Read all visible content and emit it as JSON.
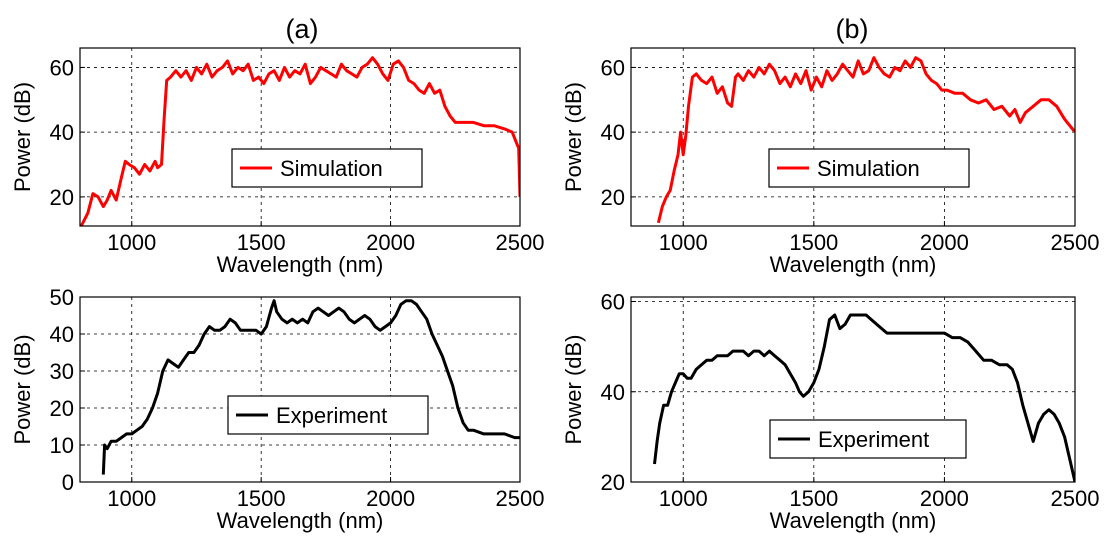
{
  "chart_data": [
    {
      "type": "line",
      "panel_title": "(a)",
      "xlabel": "Wavelength (nm)",
      "ylabel": "Power (dB)",
      "xlim": [
        800,
        2500
      ],
      "ylim": [
        11,
        66
      ],
      "xticks": [
        1000,
        1500,
        2000,
        2500
      ],
      "yticks": [
        20,
        40,
        60
      ],
      "grid": true,
      "legend": "center",
      "series": [
        {
          "name": "Simulation",
          "color": "#ff0000",
          "x": [
            805,
            830,
            850,
            870,
            890,
            905,
            920,
            940,
            960,
            975,
            990,
            1010,
            1030,
            1050,
            1070,
            1090,
            1100,
            1115,
            1125,
            1135,
            1150,
            1170,
            1190,
            1210,
            1230,
            1250,
            1270,
            1290,
            1310,
            1330,
            1350,
            1370,
            1390,
            1410,
            1430,
            1450,
            1470,
            1490,
            1510,
            1530,
            1550,
            1570,
            1590,
            1610,
            1630,
            1650,
            1670,
            1690,
            1710,
            1730,
            1750,
            1770,
            1790,
            1810,
            1830,
            1850,
            1870,
            1890,
            1910,
            1930,
            1950,
            1970,
            1990,
            2010,
            2030,
            2050,
            2070,
            2090,
            2110,
            2130,
            2150,
            2170,
            2190,
            2210,
            2230,
            2250,
            2280,
            2320,
            2360,
            2400,
            2440,
            2470,
            2485,
            2495,
            2500
          ],
          "y": [
            11,
            15,
            21,
            20,
            17,
            19,
            22,
            19,
            26,
            31,
            30,
            29,
            27,
            30,
            28,
            31,
            29,
            30,
            44,
            56,
            57,
            59,
            57,
            59,
            56,
            60,
            58,
            61,
            57,
            59,
            60,
            62,
            58,
            60,
            59,
            61,
            56,
            57,
            55,
            58,
            59,
            56,
            60,
            57,
            59,
            58,
            61,
            55,
            57,
            60,
            59,
            58,
            57,
            61,
            59,
            58,
            57,
            60,
            61,
            63,
            61,
            58,
            56,
            61,
            62,
            60,
            56,
            55,
            53,
            52,
            55,
            52,
            53,
            48,
            45,
            43,
            43,
            43,
            42,
            42,
            41,
            40,
            37,
            35,
            20
          ]
        }
      ]
    },
    {
      "type": "line",
      "panel_title": "(b)",
      "xlabel": "Wavelength (nm)",
      "ylabel": "Power (dB)",
      "xlim": [
        800,
        2500
      ],
      "ylim": [
        11,
        66
      ],
      "xticks": [
        1000,
        1500,
        2000,
        2500
      ],
      "yticks": [
        20,
        40,
        60
      ],
      "grid": true,
      "legend": "center",
      "series": [
        {
          "name": "Simulation",
          "color": "#ff0000",
          "x": [
            905,
            920,
            935,
            950,
            965,
            980,
            990,
            1000,
            1010,
            1020,
            1035,
            1050,
            1070,
            1090,
            1110,
            1130,
            1150,
            1170,
            1185,
            1200,
            1210,
            1230,
            1250,
            1270,
            1290,
            1310,
            1330,
            1350,
            1370,
            1390,
            1410,
            1430,
            1450,
            1470,
            1490,
            1510,
            1530,
            1550,
            1570,
            1590,
            1610,
            1630,
            1650,
            1670,
            1690,
            1710,
            1730,
            1750,
            1770,
            1790,
            1810,
            1830,
            1850,
            1870,
            1890,
            1910,
            1930,
            1950,
            1970,
            1990,
            2010,
            2040,
            2070,
            2100,
            2130,
            2160,
            2190,
            2220,
            2250,
            2270,
            2290,
            2310,
            2340,
            2370,
            2400,
            2430,
            2460,
            2500
          ],
          "y": [
            12,
            17,
            20,
            22,
            28,
            33,
            40,
            33,
            39,
            48,
            57,
            58,
            56,
            55,
            57,
            52,
            54,
            49,
            48,
            57,
            58,
            56,
            59,
            57,
            60,
            58,
            61,
            59,
            55,
            57,
            54,
            58,
            55,
            59,
            53,
            57,
            54,
            59,
            56,
            58,
            61,
            59,
            57,
            62,
            58,
            59,
            63,
            60,
            58,
            57,
            60,
            59,
            62,
            60,
            63,
            62,
            58,
            56,
            55,
            53,
            53,
            52,
            52,
            50,
            49,
            50,
            47,
            48,
            45,
            47,
            43,
            46,
            48,
            50,
            50,
            48,
            44,
            40
          ]
        }
      ]
    },
    {
      "type": "line",
      "xlabel": "Wavelength (nm)",
      "ylabel": "Power (dB)",
      "xlim": [
        800,
        2500
      ],
      "ylim": [
        0,
        50
      ],
      "xticks": [
        1000,
        1500,
        2000,
        2500
      ],
      "yticks": [
        0,
        10,
        20,
        30,
        40,
        50
      ],
      "grid": true,
      "legend": "center",
      "series": [
        {
          "name": "Experiment",
          "color": "#000000",
          "x": [
            890,
            895,
            905,
            920,
            940,
            960,
            980,
            1000,
            1020,
            1040,
            1060,
            1080,
            1100,
            1120,
            1140,
            1160,
            1180,
            1200,
            1220,
            1240,
            1260,
            1280,
            1300,
            1320,
            1340,
            1360,
            1380,
            1400,
            1420,
            1440,
            1460,
            1480,
            1500,
            1520,
            1540,
            1550,
            1560,
            1580,
            1600,
            1620,
            1640,
            1660,
            1680,
            1700,
            1720,
            1740,
            1760,
            1780,
            1800,
            1820,
            1840,
            1860,
            1880,
            1900,
            1920,
            1940,
            1960,
            1980,
            2000,
            2020,
            2040,
            2060,
            2080,
            2100,
            2120,
            2140,
            2160,
            2180,
            2200,
            2220,
            2240,
            2260,
            2280,
            2300,
            2320,
            2360,
            2400,
            2440,
            2480,
            2500
          ],
          "y": [
            2,
            10,
            9,
            11,
            11,
            12,
            13,
            13,
            14,
            15,
            17,
            20,
            24,
            30,
            33,
            32,
            31,
            33,
            35,
            35,
            37,
            40,
            42,
            41,
            41,
            42,
            44,
            43,
            41,
            41,
            41,
            41,
            40,
            42,
            47,
            49,
            46,
            44,
            43,
            44,
            43,
            44,
            43,
            46,
            47,
            46,
            45,
            46,
            47,
            46,
            44,
            43,
            44,
            45,
            44,
            42,
            41,
            42,
            43,
            45,
            48,
            49,
            49,
            48,
            46,
            44,
            40,
            37,
            34,
            30,
            26,
            20,
            16,
            14,
            14,
            13,
            13,
            13,
            12,
            12
          ]
        }
      ]
    },
    {
      "type": "line",
      "xlabel": "Wavelength (nm)",
      "ylabel": "Power (dB)",
      "xlim": [
        800,
        2500
      ],
      "ylim": [
        20,
        61
      ],
      "xticks": [
        1000,
        1500,
        2000,
        2500
      ],
      "yticks": [
        20,
        40,
        60
      ],
      "grid": true,
      "legend": "center",
      "series": [
        {
          "name": "Experiment",
          "color": "#000000",
          "x": [
            890,
            900,
            910,
            925,
            940,
            955,
            970,
            985,
            1000,
            1015,
            1030,
            1050,
            1070,
            1090,
            1110,
            1130,
            1150,
            1170,
            1190,
            1210,
            1230,
            1250,
            1270,
            1290,
            1310,
            1330,
            1350,
            1370,
            1390,
            1410,
            1430,
            1445,
            1460,
            1480,
            1500,
            1520,
            1540,
            1560,
            1580,
            1600,
            1620,
            1640,
            1660,
            1680,
            1700,
            1720,
            1740,
            1760,
            1780,
            1800,
            1820,
            1850,
            1880,
            1910,
            1940,
            1970,
            2000,
            2030,
            2060,
            2090,
            2120,
            2150,
            2180,
            2210,
            2240,
            2260,
            2280,
            2300,
            2320,
            2340,
            2360,
            2380,
            2400,
            2420,
            2440,
            2460,
            2480,
            2500
          ],
          "y": [
            24,
            29,
            33,
            37,
            37,
            40,
            42,
            44,
            44,
            43,
            43,
            45,
            46,
            47,
            47,
            48,
            48,
            48,
            49,
            49,
            49,
            48,
            49,
            49,
            48,
            49,
            48,
            47,
            46,
            44,
            42,
            40,
            39,
            40,
            42,
            45,
            50,
            56,
            57,
            54,
            55,
            57,
            57,
            57,
            57,
            56,
            55,
            54,
            53,
            53,
            53,
            53,
            53,
            53,
            53,
            53,
            53,
            52,
            52,
            51,
            49,
            47,
            47,
            46,
            46,
            45,
            42,
            37,
            33,
            29,
            33,
            35,
            36,
            35,
            33,
            30,
            25,
            20
          ]
        }
      ]
    }
  ]
}
